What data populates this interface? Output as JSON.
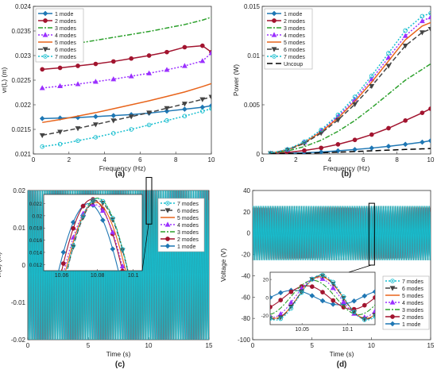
{
  "panels": [
    {
      "id": "a",
      "label": "(a)"
    },
    {
      "id": "b",
      "label": "(b)"
    },
    {
      "id": "c",
      "label": "(c)"
    },
    {
      "id": "d",
      "label": "(d)"
    }
  ],
  "chart_data": [
    {
      "id": "a",
      "type": "line",
      "xlabel": "Frequency (Hz)",
      "ylabel": "vr(L) (m)",
      "xlim": [
        0,
        10
      ],
      "ylim": [
        0.021,
        0.024
      ],
      "xticks": [
        0,
        2,
        4,
        6,
        8,
        10
      ],
      "yticks": [
        0.021,
        0.0215,
        0.022,
        0.0225,
        0.023,
        0.0235,
        0.024
      ],
      "yticklabels": [
        "0.021",
        "0.0215",
        "0.022",
        "0.0225",
        "0.023",
        "0.0235",
        "0.024"
      ],
      "grid": false,
      "legend_position": "top-left",
      "x": [
        0.5,
        1.5,
        2.5,
        3.5,
        4.5,
        5.5,
        6.5,
        7.5,
        8.5,
        9.5,
        10
      ],
      "series": [
        {
          "name": "1 mode",
          "color": "#1f77b4",
          "marker": "diamond",
          "dash": "",
          "values": [
            0.02172,
            0.02173,
            0.02174,
            0.02176,
            0.02178,
            0.0218,
            0.02183,
            0.02187,
            0.02191,
            0.02195,
            0.02198
          ]
        },
        {
          "name": "2 modes",
          "color": "#a2142f",
          "marker": "circle",
          "dash": "",
          "values": [
            0.02272,
            0.02275,
            0.02279,
            0.02283,
            0.02288,
            0.02294,
            0.023,
            0.02307,
            0.02317,
            0.0232,
            0.02307
          ]
        },
        {
          "name": "3 modes",
          "color": "#2ca02c",
          "marker": "none",
          "dash": "6,2,2,2",
          "values": [
            0.02316,
            0.0232,
            0.02325,
            0.02331,
            0.02337,
            0.02343,
            0.02349,
            0.02356,
            0.02363,
            0.02372,
            0.02378
          ]
        },
        {
          "name": "4 modes",
          "color": "#9b30ff",
          "marker": "triangle",
          "dash": "2,2",
          "values": [
            0.02234,
            0.02238,
            0.02242,
            0.02247,
            0.02252,
            0.02258,
            0.02264,
            0.02271,
            0.02279,
            0.02289,
            0.02305
          ]
        },
        {
          "name": "5 modes",
          "color": "#e8641b",
          "marker": "none",
          "dash": "",
          "values": [
            0.02164,
            0.0217,
            0.02177,
            0.02184,
            0.02192,
            0.022,
            0.02208,
            0.02217,
            0.02226,
            0.02237,
            0.02243
          ]
        },
        {
          "name": "6 modes",
          "color": "#444444",
          "marker": "triangle-down",
          "dash": "6,3",
          "values": [
            0.02138,
            0.02145,
            0.02152,
            0.0216,
            0.02168,
            0.02176,
            0.02184,
            0.02193,
            0.02202,
            0.02211,
            0.02216
          ]
        },
        {
          "name": "7 modes",
          "color": "#17becf",
          "marker": "circle-open",
          "dash": "2,2",
          "values": [
            0.02115,
            0.0212,
            0.02127,
            0.02134,
            0.02142,
            0.0215,
            0.02159,
            0.02168,
            0.02177,
            0.02187,
            0.02192
          ]
        }
      ]
    },
    {
      "id": "b",
      "type": "line",
      "xlabel": "Frequency (Hz)",
      "ylabel": "Power (W)",
      "xlim": [
        0,
        10
      ],
      "ylim": [
        0,
        0.015
      ],
      "xticks": [
        0,
        2,
        4,
        6,
        8,
        10
      ],
      "yticks": [
        0,
        0.005,
        0.01,
        0.015
      ],
      "yticklabels": [
        "0",
        "0.005",
        "0.01",
        "0.015"
      ],
      "grid": false,
      "legend_position": "top-left",
      "x": [
        0.5,
        1.5,
        2.5,
        3.5,
        4.5,
        5.5,
        6.5,
        7.5,
        8.5,
        9.5,
        10
      ],
      "series": [
        {
          "name": "1 mode",
          "color": "#1f77b4",
          "marker": "diamond",
          "dash": "",
          "values": [
            2e-05,
            6e-05,
            0.00012,
            0.0002,
            0.00032,
            0.00045,
            0.0006,
            0.00078,
            0.00098,
            0.0012,
            0.00135
          ]
        },
        {
          "name": "2 modes",
          "color": "#a2142f",
          "marker": "circle",
          "dash": "",
          "values": [
            4e-05,
            0.00015,
            0.00035,
            0.00062,
            0.00098,
            0.00143,
            0.00197,
            0.00262,
            0.0034,
            0.00418,
            0.0046
          ]
        },
        {
          "name": "3 modes",
          "color": "#2ca02c",
          "marker": "none",
          "dash": "6,2,2,2",
          "values": [
            5e-05,
            0.0003,
            0.00075,
            0.0014,
            0.0023,
            0.0034,
            0.0047,
            0.0061,
            0.0075,
            0.0086,
            0.00915
          ]
        },
        {
          "name": "4 modes",
          "color": "#9b30ff",
          "marker": "triangle",
          "dash": "2,2",
          "values": [
            7e-05,
            0.00045,
            0.0012,
            0.00235,
            0.0038,
            0.00555,
            0.0076,
            0.0098,
            0.012,
            0.0135,
            0.0139
          ]
        },
        {
          "name": "5 modes",
          "color": "#e8641b",
          "marker": "none",
          "dash": "",
          "values": [
            7e-05,
            0.00043,
            0.00115,
            0.00225,
            0.00365,
            0.00535,
            0.0073,
            0.00945,
            0.0116,
            0.013,
            0.01335
          ]
        },
        {
          "name": "6 modes",
          "color": "#444444",
          "marker": "triangle-down",
          "dash": "6,3",
          "values": [
            7e-05,
            0.0004,
            0.00108,
            0.00212,
            0.00345,
            0.00505,
            0.0069,
            0.00895,
            0.011,
            0.01235,
            0.0127
          ]
        },
        {
          "name": "7 modes",
          "color": "#17becf",
          "marker": "circle-open",
          "dash": "2,2",
          "values": [
            8e-05,
            0.00047,
            0.00125,
            0.00245,
            0.00398,
            0.0058,
            0.00795,
            0.01025,
            0.01255,
            0.014,
            0.0143
          ]
        },
        {
          "name": "Uncoup",
          "color": "#000000",
          "marker": "none",
          "dash": "7,4",
          "values": [
            1e-05,
            3e-05,
            7e-05,
            0.00012,
            0.00018,
            0.00025,
            0.00032,
            0.00039,
            0.00046,
            0.00052,
            0.00055
          ]
        }
      ]
    },
    {
      "id": "c",
      "type": "line",
      "xlabel": "Time (s)",
      "ylabel": "vr(L) (m)",
      "xlim": [
        0,
        15
      ],
      "ylim": [
        -0.02,
        0.02
      ],
      "xticks": [
        0,
        5,
        10,
        15
      ],
      "yticks": [
        -0.02,
        -0.01,
        0,
        0.01,
        0.02
      ],
      "yticklabels": [
        "-0.02",
        "-0.01",
        "0",
        "0.01",
        "0.02"
      ],
      "grid": false,
      "legend_position": "right",
      "oscillation_frequency_hz": 10,
      "amplitude": 0.0225,
      "inset": {
        "xlim": [
          10.05,
          10.105
        ],
        "ylim": [
          0.011,
          0.0235
        ],
        "xticks": [
          10.06,
          10.08,
          10.1
        ],
        "xticklabels": [
          "10.06",
          "10.08",
          "10.1"
        ],
        "yticks": [
          0.012,
          0.014,
          0.016,
          0.018,
          0.02,
          0.022
        ],
        "yticklabels": [
          "0.012",
          "0.014",
          "0.016",
          "0.018",
          "0.02",
          "0.022"
        ],
        "peaks": [
          {
            "name": "7 modes",
            "t": 10.08,
            "peak": 0.0228
          },
          {
            "name": "6 modes",
            "t": 10.08,
            "peak": 0.0225
          },
          {
            "name": "5 modes",
            "t": 10.079,
            "peak": 0.0222
          },
          {
            "name": "4 modes",
            "t": 10.078,
            "peak": 0.0219
          },
          {
            "name": "3 modes",
            "t": 10.08,
            "peak": 0.0229
          },
          {
            "name": "2 modes",
            "t": 10.077,
            "peak": 0.0227
          },
          {
            "name": "1 mode",
            "t": 10.075,
            "peak": 0.022
          }
        ]
      },
      "series": [
        {
          "name": "7 modes",
          "color": "#17becf",
          "marker": "circle-open",
          "dash": "2,2"
        },
        {
          "name": "6 modes",
          "color": "#444444",
          "marker": "triangle-down",
          "dash": "6,3"
        },
        {
          "name": "5 modes",
          "color": "#e8641b",
          "marker": "none",
          "dash": ""
        },
        {
          "name": "4 modes",
          "color": "#9b30ff",
          "marker": "triangle",
          "dash": "2,2"
        },
        {
          "name": "3 modes",
          "color": "#2ca02c",
          "marker": "none",
          "dash": "6,2,2,2"
        },
        {
          "name": "2 modes",
          "color": "#a2142f",
          "marker": "circle",
          "dash": ""
        },
        {
          "name": "1 mode",
          "color": "#1f77b4",
          "marker": "diamond",
          "dash": ""
        }
      ]
    },
    {
      "id": "d",
      "type": "line",
      "xlabel": "Time (s)",
      "ylabel": "Voltage (V)",
      "xlim": [
        0,
        15
      ],
      "ylim": [
        -100,
        40
      ],
      "xticks": [
        0,
        5,
        10,
        15
      ],
      "yticks": [
        -100,
        -80,
        -60,
        -40,
        -20,
        0,
        20,
        40
      ],
      "yticklabels": [
        "-100",
        "-80",
        "-60",
        "-40",
        "-20",
        "0",
        "20",
        "40"
      ],
      "grid": false,
      "legend_position": "inset-right",
      "oscillation_frequency_hz": 10,
      "amplitude": 26,
      "inset": {
        "xlim": [
          10.015,
          10.13
        ],
        "ylim": [
          -30,
          28
        ],
        "xticks": [
          10.05,
          10.1
        ],
        "xticklabels": [
          "10.05",
          "10.1"
        ],
        "yticks": [
          -20,
          0,
          20
        ],
        "yticklabels": [
          "-20",
          "0",
          "20"
        ],
        "peaks": [
          {
            "name": "7 modes",
            "t": 10.071,
            "peak": 25
          },
          {
            "name": "6 modes",
            "t": 10.07,
            "peak": 24
          },
          {
            "name": "5 modes",
            "t": 10.07,
            "peak": 23
          },
          {
            "name": "4 modes",
            "t": 10.067,
            "peak": 22
          },
          {
            "name": "3 modes",
            "t": 10.062,
            "peak": 19
          },
          {
            "name": "2 modes",
            "t": 10.055,
            "peak": 13
          },
          {
            "name": "1 mode",
            "t": 10.04,
            "peak": 8
          }
        ]
      },
      "series": [
        {
          "name": "7 modes",
          "color": "#17becf",
          "marker": "circle-open",
          "dash": "2,2"
        },
        {
          "name": "6 modes",
          "color": "#444444",
          "marker": "triangle-down",
          "dash": "6,3"
        },
        {
          "name": "5 modes",
          "color": "#e8641b",
          "marker": "none",
          "dash": ""
        },
        {
          "name": "4 modes",
          "color": "#9b30ff",
          "marker": "triangle",
          "dash": "2,2"
        },
        {
          "name": "3 modes",
          "color": "#2ca02c",
          "marker": "none",
          "dash": "6,2,2,2"
        },
        {
          "name": "2 modes",
          "color": "#a2142f",
          "marker": "circle",
          "dash": ""
        },
        {
          "name": "1 mode",
          "color": "#1f77b4",
          "marker": "diamond",
          "dash": ""
        }
      ]
    }
  ]
}
